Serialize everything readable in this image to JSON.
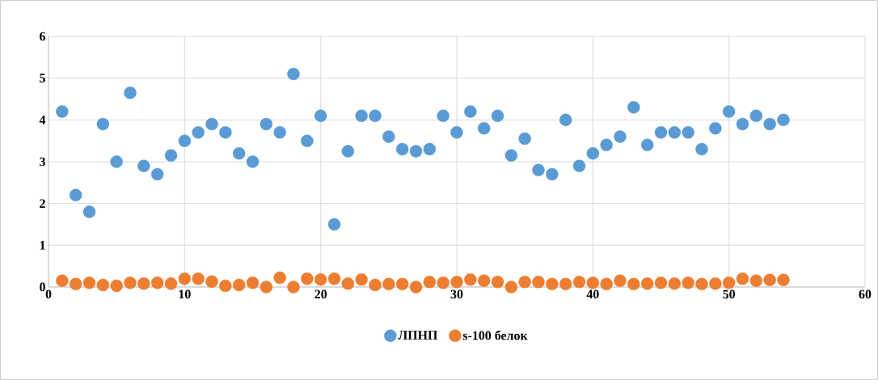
{
  "chart_data": {
    "type": "scatter",
    "xlim": [
      0,
      60
    ],
    "ylim": [
      0,
      6
    ],
    "xticks": [
      0,
      10,
      20,
      30,
      40,
      50,
      60
    ],
    "yticks": [
      0,
      1,
      2,
      3,
      4,
      5,
      6
    ],
    "grid": true,
    "legend": "bottom",
    "marker": "circle",
    "series": [
      {
        "name": "ЛПНП",
        "color": "#5b9bd5",
        "x": [
          1,
          2,
          3,
          4,
          5,
          6,
          7,
          8,
          9,
          10,
          11,
          12,
          13,
          14,
          15,
          16,
          17,
          18,
          19,
          20,
          21,
          22,
          23,
          24,
          25,
          26,
          27,
          28,
          29,
          30,
          31,
          32,
          33,
          34,
          35,
          36,
          37,
          38,
          39,
          40,
          41,
          42,
          43,
          44,
          45,
          46,
          47,
          48,
          49,
          50,
          51,
          52,
          53,
          54
        ],
        "values": [
          4.2,
          2.2,
          1.8,
          3.9,
          3.0,
          4.65,
          2.9,
          2.7,
          3.15,
          3.5,
          3.7,
          3.9,
          3.7,
          3.2,
          3.0,
          3.9,
          3.7,
          5.1,
          3.5,
          4.1,
          1.5,
          3.25,
          4.1,
          4.1,
          3.6,
          3.3,
          3.25,
          3.3,
          4.1,
          3.7,
          4.2,
          3.8,
          4.1,
          3.15,
          3.55,
          2.8,
          2.7,
          4.0,
          2.9,
          3.2,
          3.4,
          3.6,
          4.3,
          3.4,
          3.7,
          3.7,
          3.7,
          3.3,
          3.8,
          4.2,
          3.9,
          4.1,
          3.9,
          4.0
        ]
      },
      {
        "name": "s-100 белок",
        "color": "#ed7d31",
        "x": [
          1,
          2,
          3,
          4,
          5,
          6,
          7,
          8,
          9,
          10,
          11,
          12,
          13,
          14,
          15,
          16,
          17,
          18,
          19,
          20,
          21,
          22,
          23,
          24,
          25,
          26,
          27,
          28,
          29,
          30,
          31,
          32,
          33,
          34,
          35,
          36,
          37,
          38,
          39,
          40,
          41,
          42,
          43,
          44,
          45,
          46,
          47,
          48,
          49,
          50,
          51,
          52,
          53,
          54
        ],
        "values": [
          0.15,
          0.07,
          0.1,
          0.05,
          0.03,
          0.1,
          0.08,
          0.1,
          0.08,
          0.2,
          0.2,
          0.13,
          0.03,
          0.05,
          0.1,
          0,
          0.22,
          0,
          0.2,
          0.18,
          0.2,
          0.08,
          0.18,
          0.05,
          0.07,
          0.07,
          0,
          0.12,
          0.1,
          0.12,
          0.18,
          0.15,
          0.12,
          0,
          0.12,
          0.12,
          0.07,
          0.07,
          0.12,
          0.1,
          0.07,
          0.15,
          0.07,
          0.08,
          0.1,
          0.08,
          0.1,
          0.07,
          0.08,
          0.1,
          0.2,
          0.15,
          0.17,
          0.17
        ]
      }
    ]
  }
}
